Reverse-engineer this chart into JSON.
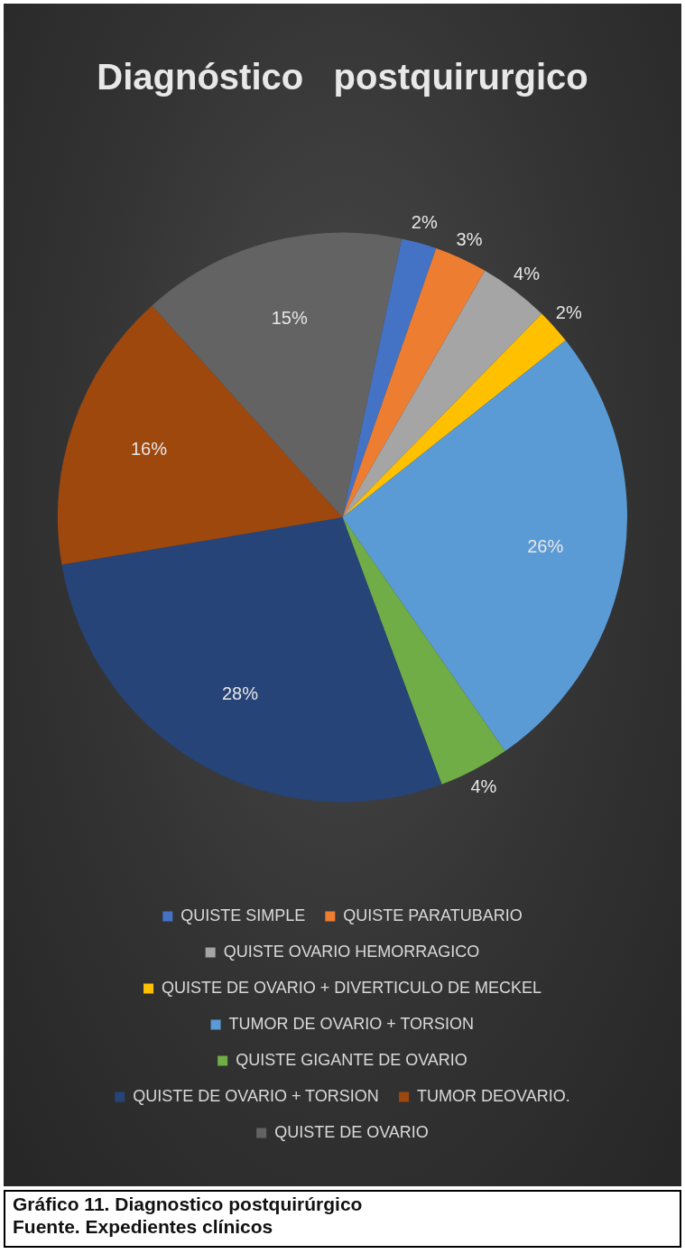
{
  "chart_data": {
    "type": "pie",
    "title": "Diagnóstico   postquirurgico",
    "categories": [
      "QUISTE SIMPLE",
      "QUISTE PARATUBARIO",
      "QUISTE OVARIO HEMORRAGICO",
      "QUISTE DE OVARIO + DIVERTICULO DE MECKEL",
      "TUMOR DE OVARIO + TORSION",
      "QUISTE GIGANTE DE OVARIO",
      "QUISTE DE OVARIO + TORSION",
      "TUMOR DEOVARIO.",
      "QUISTE DE OVARIO"
    ],
    "values": [
      2,
      3,
      4,
      2,
      26,
      4,
      28,
      16,
      15
    ],
    "value_labels": [
      "2%",
      "3%",
      "4%",
      "2%",
      "26%",
      "4%",
      "28%",
      "16%",
      "15%"
    ],
    "colors": [
      "#4472c4",
      "#ed7d31",
      "#a5a5a5",
      "#ffc000",
      "#5b9bd5",
      "#70ad47",
      "#264478",
      "#9e480e",
      "#636363"
    ],
    "legend": "bottom",
    "annotations": [
      "Gráfico 11.  Diagnostico postquirúrgico",
      "Fuente. Expedientes clínicos"
    ]
  }
}
